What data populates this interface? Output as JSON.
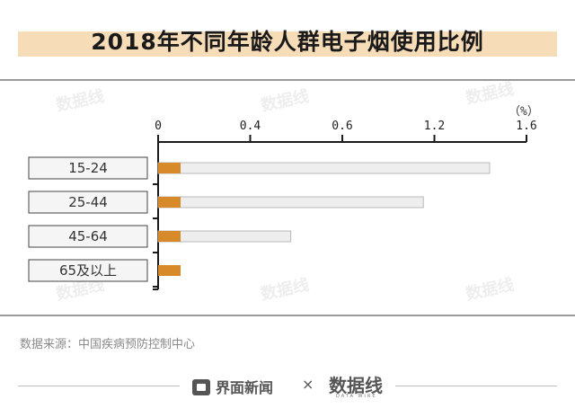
{
  "title": "2018年不同年龄人群电子烟使用比例",
  "unit_label": "（%）",
  "source": "数据来源：中国疾病预防控制中心",
  "footer": {
    "brand": "界面新闻",
    "separator": "×",
    "partner": "数据线",
    "partner_sub": "DATA WIRE"
  },
  "colors": {
    "title_band": "#f7dcb8",
    "bar_accent": "#d88a2a",
    "bar_track": "#eeeeee",
    "bar_track_border": "#b8b8b8",
    "axis": "#1a1a1a"
  },
  "chart_data": {
    "type": "bar",
    "orientation": "horizontal",
    "categories": [
      "15-24",
      "25-44",
      "45-64",
      "65及以上"
    ],
    "values": [
      1.5,
      1.2,
      0.6,
      0.0
    ],
    "xticks": [
      "0",
      "0.4",
      "0.6",
      "1.2",
      "1.6"
    ],
    "xlim": [
      0,
      1.6
    ],
    "title": "2018年不同年龄人群电子烟使用比例",
    "unit": "（%）",
    "grid": false,
    "legend": "none"
  }
}
